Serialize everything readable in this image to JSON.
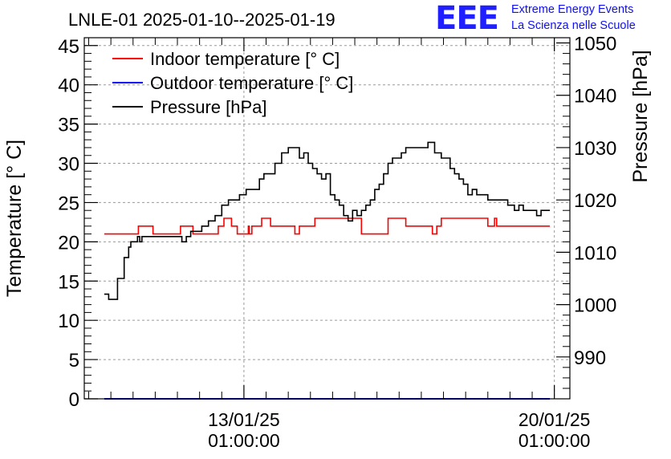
{
  "brand": {
    "logo": "EEE",
    "line1": "Extreme Energy Events",
    "line2": "La Scienza nelle Scuole",
    "logo_color": "#1f1fff",
    "text_color": "#1010ee"
  },
  "chart_data": {
    "type": "line",
    "title": "LNLE-01 2025-01-10--2025-01-19",
    "ylabel": "Temperature [° C]",
    "y2label": "Pressure [hPa]",
    "ylim": [
      0,
      46
    ],
    "y2lim": [
      982,
      1051
    ],
    "yticks": [
      0,
      5,
      10,
      15,
      20,
      25,
      30,
      35,
      40,
      45
    ],
    "y2ticks": [
      990,
      1000,
      1010,
      1020,
      1030,
      1040,
      1050
    ],
    "xlim_days": [
      -3.6,
      7.35
    ],
    "xticks": [
      {
        "day": 0,
        "date": "13/01/25",
        "time": "01:00:00"
      },
      {
        "day": 7,
        "date": "20/01/25",
        "time": "01:00:00"
      }
    ],
    "grid": true,
    "legend_position": "top-left",
    "series": [
      {
        "name": "Indoor temperature [° C]",
        "axis": "left",
        "color": "#ff0000",
        "x": [
          -3.15,
          -2.45,
          -2.38,
          -2.1,
          -2.05,
          -1.5,
          -1.43,
          -1.2,
          -1.15,
          -0.65,
          -0.58,
          -0.52,
          -0.45,
          -0.3,
          -0.28,
          -0.2,
          -0.15,
          0.05,
          0.1,
          0.12,
          0.18,
          0.35,
          0.4,
          0.55,
          0.6,
          1.12,
          1.15,
          1.18,
          1.25,
          1.55,
          1.6,
          2.6,
          2.65,
          3.2,
          3.25,
          3.6,
          3.65,
          4.2,
          4.25,
          4.25,
          4.35,
          4.45,
          4.5,
          5.45,
          5.5,
          5.65,
          5.7,
          6.9
        ],
        "values": [
          21,
          21,
          22,
          22,
          21,
          21,
          22,
          22,
          21,
          21,
          22,
          22,
          23,
          23,
          22,
          22,
          21,
          21,
          22,
          21,
          22,
          22,
          23,
          23,
          22,
          22,
          21,
          21,
          22,
          22,
          23,
          23,
          21,
          21,
          23,
          23,
          22,
          22,
          21,
          21,
          22,
          23,
          23,
          23,
          22,
          23,
          22,
          22
        ]
      },
      {
        "name": "Outdoor temperature [° C]",
        "axis": "left",
        "color": "#0000ff",
        "x": [
          -3.15,
          6.9
        ],
        "values": [
          0,
          0
        ]
      },
      {
        "name": "Pressure [hPa]",
        "axis": "right",
        "color": "#000000",
        "x": [
          -3.15,
          -3.05,
          -2.95,
          -2.85,
          -2.7,
          -2.6,
          -2.55,
          -2.5,
          -2.4,
          -2.35,
          -2.3,
          -2.25,
          -2.15,
          -2.05,
          -1.9,
          -1.7,
          -1.5,
          -1.4,
          -1.3,
          -1.2,
          -1.1,
          -0.95,
          -0.8,
          -0.65,
          -0.5,
          -0.45,
          -0.35,
          -0.2,
          -0.1,
          0.05,
          0.2,
          0.35,
          0.45,
          0.55,
          0.7,
          0.85,
          1.0,
          1.15,
          1.25,
          1.35,
          1.45,
          1.55,
          1.65,
          1.75,
          1.85,
          1.95,
          2.05,
          2.15,
          2.25,
          2.35,
          2.45,
          2.55,
          2.65,
          2.75,
          2.85,
          2.95,
          3.05,
          3.15,
          3.25,
          3.35,
          3.45,
          3.55,
          3.65,
          3.75,
          3.85,
          3.95,
          4.05,
          4.15,
          4.3,
          4.45,
          4.55,
          4.65,
          4.75,
          4.85,
          4.95,
          5.05,
          5.15,
          5.25,
          5.35,
          5.5,
          5.6,
          5.7,
          5.8,
          5.95,
          6.1,
          6.2,
          6.3,
          6.4,
          6.5,
          6.6,
          6.7,
          6.8,
          6.9
        ],
        "values": [
          1002,
          1001,
          1001,
          1005,
          1009,
          1011,
          1012,
          1012,
          1013,
          1012,
          1013,
          1013,
          1013,
          1013,
          1013,
          1013,
          1013,
          1012,
          1013,
          1014,
          1014,
          1015,
          1016,
          1017,
          1019,
          1019,
          1020,
          1020,
          1021,
          1022,
          1022,
          1024,
          1025,
          1025,
          1027,
          1029,
          1030,
          1030,
          1028,
          1029,
          1027,
          1026,
          1025,
          1024,
          1025,
          1021,
          1020,
          1019,
          1017,
          1016,
          1018,
          1017,
          1018,
          1019,
          1020,
          1022,
          1023,
          1025,
          1027,
          1028,
          1028,
          1029,
          1030,
          1030,
          1030,
          1030,
          1030,
          1031,
          1029,
          1028,
          1028,
          1026,
          1025,
          1024,
          1023,
          1021,
          1022,
          1021,
          1021,
          1020,
          1020,
          1020,
          1020,
          1019,
          1018,
          1019,
          1018,
          1018,
          1018,
          1017,
          1018,
          1018,
          1018
        ]
      }
    ]
  }
}
